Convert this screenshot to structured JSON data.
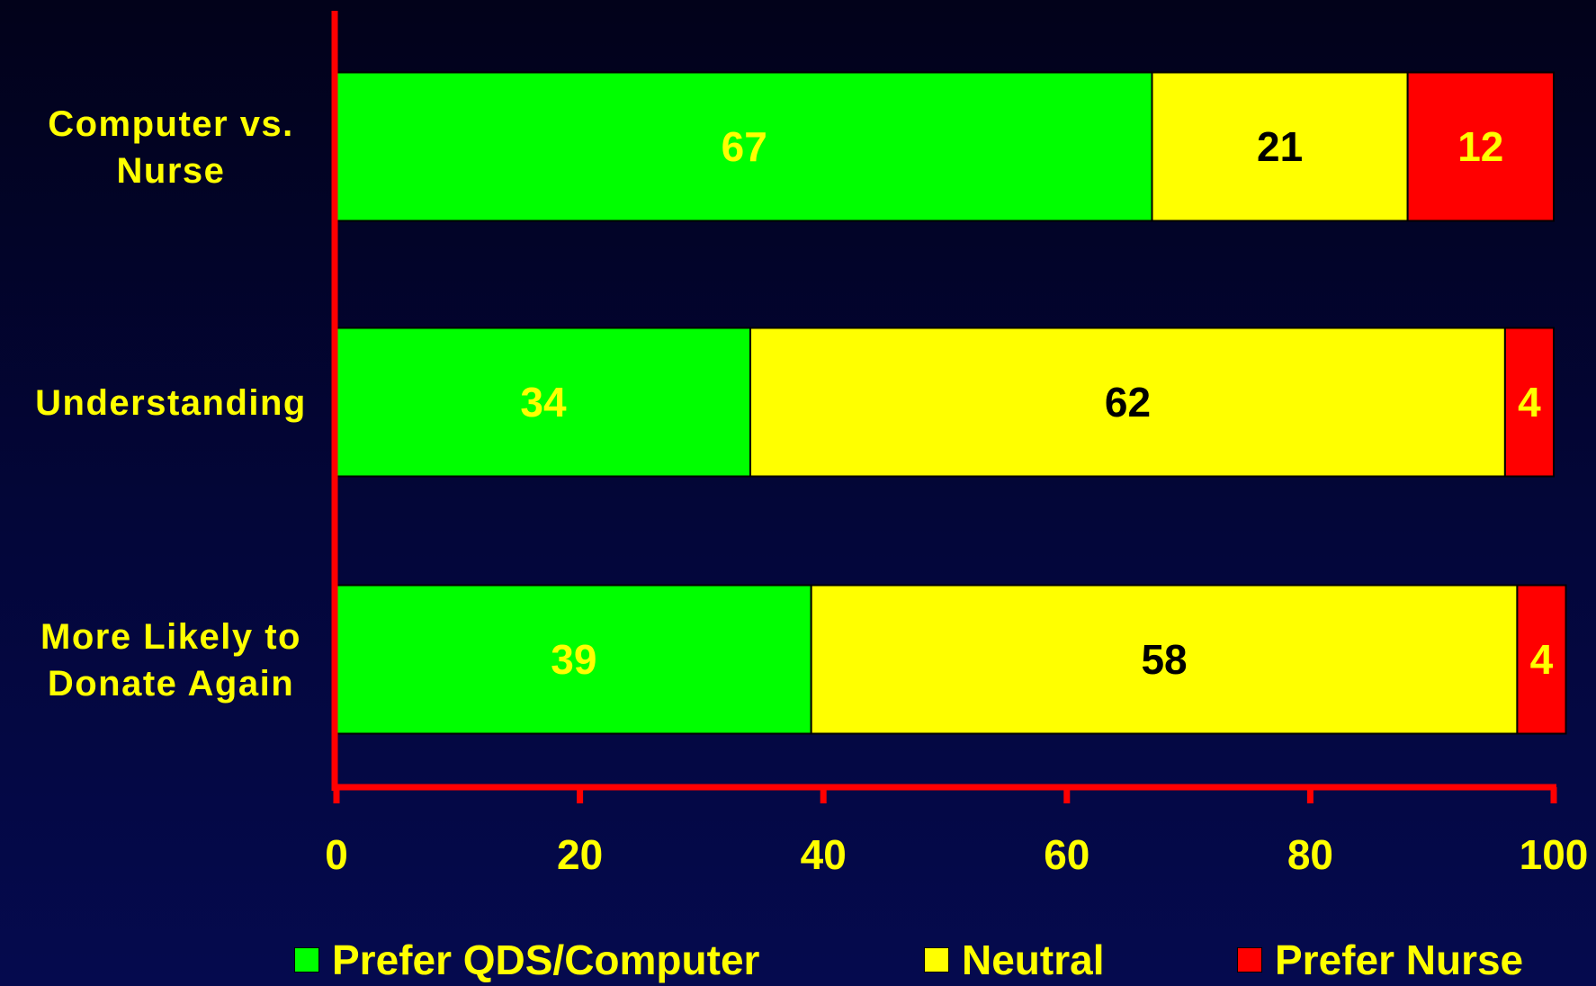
{
  "chart_data": {
    "type": "bar",
    "orientation": "horizontal",
    "stacked": true,
    "categories": [
      "Computer vs. Nurse",
      "Understanding",
      "More Likely to Donate Again"
    ],
    "category_lines": [
      [
        "Computer vs.",
        "Nurse"
      ],
      [
        "Understanding"
      ],
      [
        "More Likely to",
        "Donate Again"
      ]
    ],
    "series": [
      {
        "name": "Prefer QDS/Computer",
        "values": [
          67,
          34,
          39
        ],
        "color": "#00ff00",
        "label_color": "#ffff00"
      },
      {
        "name": "Neutral",
        "values": [
          21,
          62,
          58
        ],
        "color": "#ffff00",
        "label_color": "#000000"
      },
      {
        "name": "Prefer Nurse",
        "values": [
          12,
          4,
          4
        ],
        "color": "#ff0000",
        "label_color": "#ffff00"
      }
    ],
    "xlim": [
      0,
      100
    ],
    "xticks": [
      0,
      20,
      40,
      60,
      80,
      100
    ],
    "xticklabels": [
      "0",
      "20",
      "40",
      "60",
      "80",
      "100"
    ],
    "title": "",
    "xlabel": "",
    "ylabel": "",
    "grid": false,
    "legend_position": "bottom",
    "axis_color": "#ff0000",
    "text_color": "#ffff00"
  }
}
